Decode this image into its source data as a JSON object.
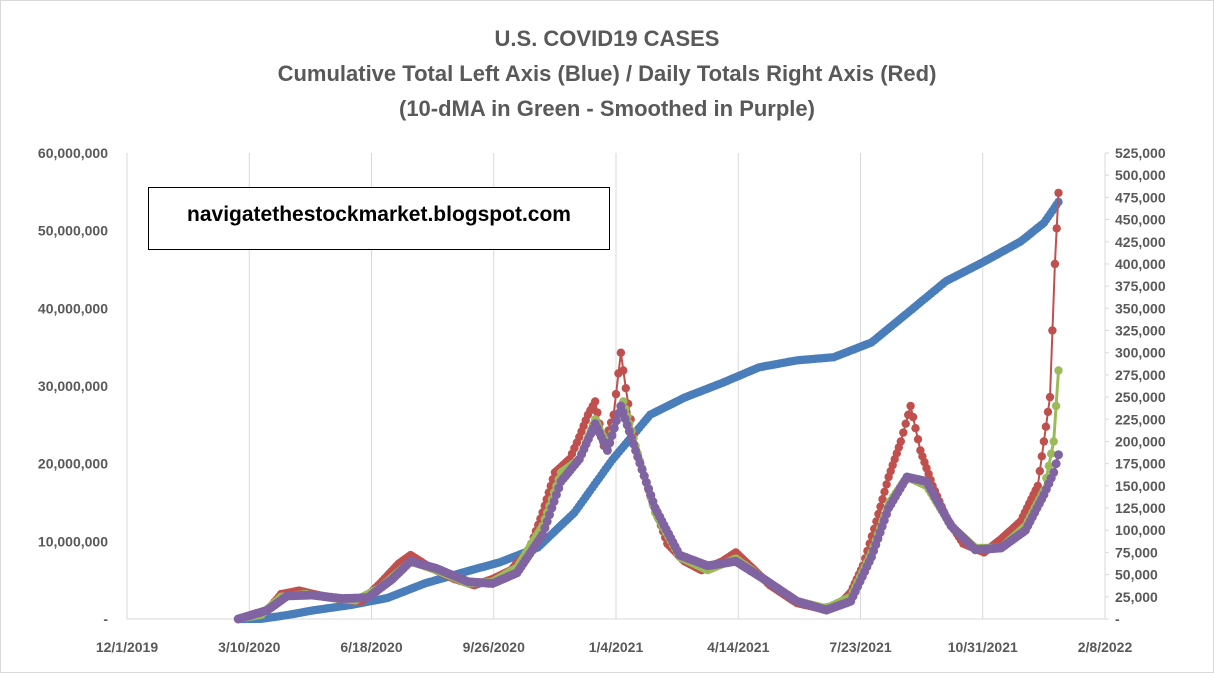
{
  "title_lines": [
    "U.S. COVID19 CASES",
    "Cumulative Total Left Axis (Blue) / Daily Totals Right Axis (Red)",
    "(10-dMA in Green - Smoothed in Purple)"
  ],
  "watermark": "navigatethestockmarket.blogspot.com",
  "colors": {
    "cumulative": "#4a7ebb",
    "daily": "#c0504d",
    "ma10": "#9bbb59",
    "smoothed": "#8064a2",
    "grid": "#d9d9d9",
    "tick_text": "#595959"
  },
  "chart_data": {
    "type": "line",
    "x_axis": {
      "type": "date",
      "range": [
        "2019-12-01",
        "2022-02-08"
      ],
      "tick_labels": [
        "12/1/2019",
        "3/10/2020",
        "6/18/2020",
        "9/26/2020",
        "1/4/2021",
        "4/14/2021",
        "7/23/2021",
        "10/31/2021",
        "2/8/2022"
      ]
    },
    "y_left": {
      "range": [
        0,
        60000000
      ],
      "tick_labels": [
        "-",
        "10,000,000",
        "20,000,000",
        "30,000,000",
        "40,000,000",
        "50,000,000",
        "60,000,000"
      ]
    },
    "y_right": {
      "range": [
        0,
        525000
      ],
      "tick_labels": [
        "-",
        "25,000",
        "50,000",
        "75,000",
        "100,000",
        "125,000",
        "150,000",
        "175,000",
        "200,000",
        "225,000",
        "250,000",
        "275,000",
        "300,000",
        "325,000",
        "350,000",
        "375,000",
        "400,000",
        "425,000",
        "450,000",
        "475,000",
        "500,000",
        "525,000"
      ]
    },
    "grid": "vertical",
    "series": [
      {
        "axis": "left",
        "points": [
          [
            "2020-03-01",
            0
          ],
          [
            "2020-03-20",
            20000
          ],
          [
            "2020-04-10",
            500000
          ],
          [
            "2020-05-01",
            1100000
          ],
          [
            "2020-06-01",
            1800000
          ],
          [
            "2020-07-01",
            2700000
          ],
          [
            "2020-08-01",
            4600000
          ],
          [
            "2020-09-01",
            6000000
          ],
          [
            "2020-10-01",
            7300000
          ],
          [
            "2020-11-01",
            9200000
          ],
          [
            "2020-12-01",
            13700000
          ],
          [
            "2021-01-01",
            20500000
          ],
          [
            "2021-02-01",
            26300000
          ],
          [
            "2021-03-01",
            28500000
          ],
          [
            "2021-04-01",
            30400000
          ],
          [
            "2021-05-01",
            32400000
          ],
          [
            "2021-06-01",
            33300000
          ],
          [
            "2021-07-01",
            33700000
          ],
          [
            "2021-08-01",
            35600000
          ],
          [
            "2021-09-01",
            39600000
          ],
          [
            "2021-10-01",
            43500000
          ],
          [
            "2021-11-01",
            46000000
          ],
          [
            "2021-12-01",
            48600000
          ],
          [
            "2021-12-20",
            51000000
          ],
          [
            "2022-01-01",
            53700000
          ]
        ]
      },
      {
        "axis": "right",
        "points": [
          [
            "2020-03-01",
            0
          ],
          [
            "2020-03-25",
            10000
          ],
          [
            "2020-04-05",
            28000
          ],
          [
            "2020-04-20",
            32000
          ],
          [
            "2020-05-05",
            27000
          ],
          [
            "2020-05-25",
            22000
          ],
          [
            "2020-06-10",
            20000
          ],
          [
            "2020-06-25",
            40000
          ],
          [
            "2020-07-10",
            62000
          ],
          [
            "2020-07-20",
            72000
          ],
          [
            "2020-08-05",
            58000
          ],
          [
            "2020-08-25",
            45000
          ],
          [
            "2020-09-10",
            38000
          ],
          [
            "2020-09-25",
            45000
          ],
          [
            "2020-10-10",
            55000
          ],
          [
            "2020-10-25",
            78000
          ],
          [
            "2020-11-05",
            120000
          ],
          [
            "2020-11-15",
            165000
          ],
          [
            "2020-11-27",
            180000
          ],
          [
            "2020-12-05",
            205000
          ],
          [
            "2020-12-12",
            230000
          ],
          [
            "2020-12-18",
            245000
          ],
          [
            "2020-12-25",
            195000
          ],
          [
            "2021-01-02",
            230000
          ],
          [
            "2021-01-08",
            300000
          ],
          [
            "2021-01-12",
            260000
          ],
          [
            "2021-01-20",
            190000
          ],
          [
            "2021-02-01",
            140000
          ],
          [
            "2021-02-15",
            85000
          ],
          [
            "2021-03-01",
            65000
          ],
          [
            "2021-03-15",
            55000
          ],
          [
            "2021-04-01",
            65000
          ],
          [
            "2021-04-12",
            75000
          ],
          [
            "2021-04-25",
            58000
          ],
          [
            "2021-05-10",
            38000
          ],
          [
            "2021-06-01",
            18000
          ],
          [
            "2021-06-20",
            12000
          ],
          [
            "2021-07-05",
            15000
          ],
          [
            "2021-07-15",
            30000
          ],
          [
            "2021-07-25",
            60000
          ],
          [
            "2021-08-05",
            110000
          ],
          [
            "2021-08-15",
            160000
          ],
          [
            "2021-08-25",
            200000
          ],
          [
            "2021-09-02",
            240000
          ],
          [
            "2021-09-10",
            190000
          ],
          [
            "2021-09-20",
            150000
          ],
          [
            "2021-10-01",
            115000
          ],
          [
            "2021-10-15",
            85000
          ],
          [
            "2021-11-01",
            75000
          ],
          [
            "2021-11-15",
            90000
          ],
          [
            "2021-12-01",
            110000
          ],
          [
            "2021-12-15",
            150000
          ],
          [
            "2021-12-25",
            250000
          ],
          [
            "2021-12-29",
            400000
          ],
          [
            "2022-01-01",
            480000
          ]
        ]
      },
      {
        "axis": "right",
        "points": [
          [
            "2020-03-01",
            0
          ],
          [
            "2020-03-20",
            5000
          ],
          [
            "2020-04-05",
            25000
          ],
          [
            "2020-04-25",
            28000
          ],
          [
            "2020-05-15",
            24000
          ],
          [
            "2020-06-05",
            21000
          ],
          [
            "2020-06-25",
            35000
          ],
          [
            "2020-07-20",
            65000
          ],
          [
            "2020-08-10",
            55000
          ],
          [
            "2020-09-05",
            40000
          ],
          [
            "2020-09-25",
            42000
          ],
          [
            "2020-10-15",
            58000
          ],
          [
            "2020-11-05",
            105000
          ],
          [
            "2020-11-20",
            165000
          ],
          [
            "2020-12-05",
            180000
          ],
          [
            "2020-12-18",
            225000
          ],
          [
            "2020-12-28",
            195000
          ],
          [
            "2021-01-10",
            245000
          ],
          [
            "2021-01-20",
            195000
          ],
          [
            "2021-02-05",
            120000
          ],
          [
            "2021-02-25",
            70000
          ],
          [
            "2021-03-20",
            55000
          ],
          [
            "2021-04-12",
            68000
          ],
          [
            "2021-05-05",
            45000
          ],
          [
            "2021-06-01",
            20000
          ],
          [
            "2021-06-25",
            12000
          ],
          [
            "2021-07-15",
            25000
          ],
          [
            "2021-08-01",
            75000
          ],
          [
            "2021-08-15",
            130000
          ],
          [
            "2021-08-30",
            160000
          ],
          [
            "2021-09-15",
            150000
          ],
          [
            "2021-10-05",
            105000
          ],
          [
            "2021-10-25",
            80000
          ],
          [
            "2021-11-15",
            80000
          ],
          [
            "2021-12-05",
            105000
          ],
          [
            "2021-12-20",
            145000
          ],
          [
            "2021-12-28",
            200000
          ],
          [
            "2022-01-01",
            280000
          ]
        ]
      },
      {
        "axis": "right",
        "points": [
          [
            "2020-03-01",
            0
          ],
          [
            "2020-03-25",
            10000
          ],
          [
            "2020-04-10",
            26000
          ],
          [
            "2020-04-30",
            27000
          ],
          [
            "2020-05-25",
            23000
          ],
          [
            "2020-06-15",
            24000
          ],
          [
            "2020-07-05",
            45000
          ],
          [
            "2020-07-20",
            65000
          ],
          [
            "2020-08-10",
            57000
          ],
          [
            "2020-09-05",
            42000
          ],
          [
            "2020-09-25",
            40000
          ],
          [
            "2020-10-15",
            52000
          ],
          [
            "2020-11-05",
            95000
          ],
          [
            "2020-11-20",
            155000
          ],
          [
            "2020-12-05",
            180000
          ],
          [
            "2020-12-18",
            220000
          ],
          [
            "2020-12-28",
            190000
          ],
          [
            "2021-01-08",
            240000
          ],
          [
            "2021-01-20",
            190000
          ],
          [
            "2021-02-05",
            125000
          ],
          [
            "2021-02-25",
            72000
          ],
          [
            "2021-03-20",
            60000
          ],
          [
            "2021-04-12",
            65000
          ],
          [
            "2021-05-05",
            45000
          ],
          [
            "2021-06-01",
            20000
          ],
          [
            "2021-06-25",
            10000
          ],
          [
            "2021-07-15",
            20000
          ],
          [
            "2021-08-01",
            70000
          ],
          [
            "2021-08-15",
            125000
          ],
          [
            "2021-08-30",
            160000
          ],
          [
            "2021-09-15",
            155000
          ],
          [
            "2021-10-05",
            105000
          ],
          [
            "2021-10-25",
            78000
          ],
          [
            "2021-11-15",
            80000
          ],
          [
            "2021-12-05",
            100000
          ],
          [
            "2021-12-20",
            140000
          ],
          [
            "2021-12-28",
            165000
          ],
          [
            "2022-01-01",
            185000
          ]
        ]
      }
    ]
  }
}
